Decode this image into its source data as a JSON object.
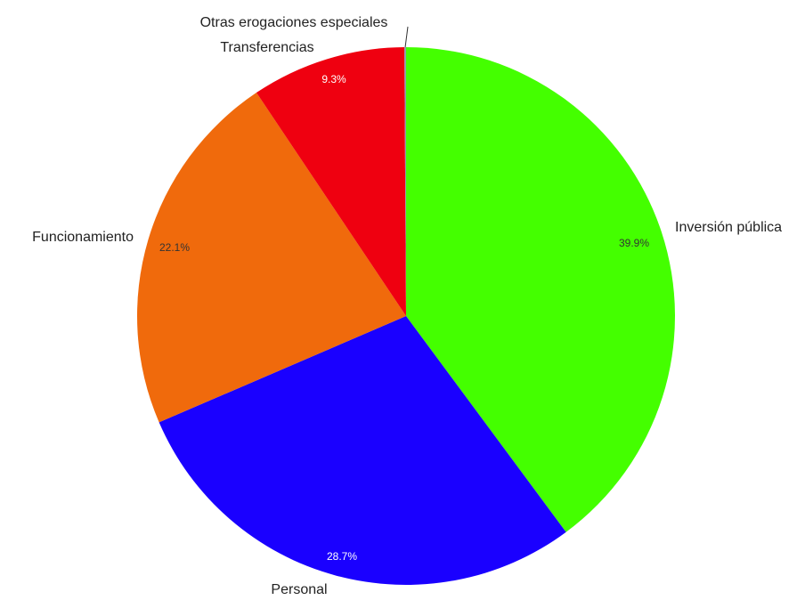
{
  "chart_data": {
    "type": "pie",
    "title": "",
    "start_angle_deg": 0,
    "direction": "clockwise",
    "slices": [
      {
        "label": "Inversión pública",
        "percent_label": "39.9%",
        "value": 39.9,
        "color": "#44ff00"
      },
      {
        "label": "Personal",
        "percent_label": "28.7%",
        "value": 28.7,
        "color": "#1a00ff"
      },
      {
        "label": "Funcionamiento",
        "percent_label": "22.1%",
        "value": 22.1,
        "color": "#f06a0c"
      },
      {
        "label": "Transferencias",
        "percent_label": "9.3%",
        "value": 9.3,
        "color": "#ef0010"
      },
      {
        "label": "Otras erogaciones especiales",
        "percent_label": "",
        "value": 0.1,
        "color": "#8a9cb0"
      }
    ]
  }
}
